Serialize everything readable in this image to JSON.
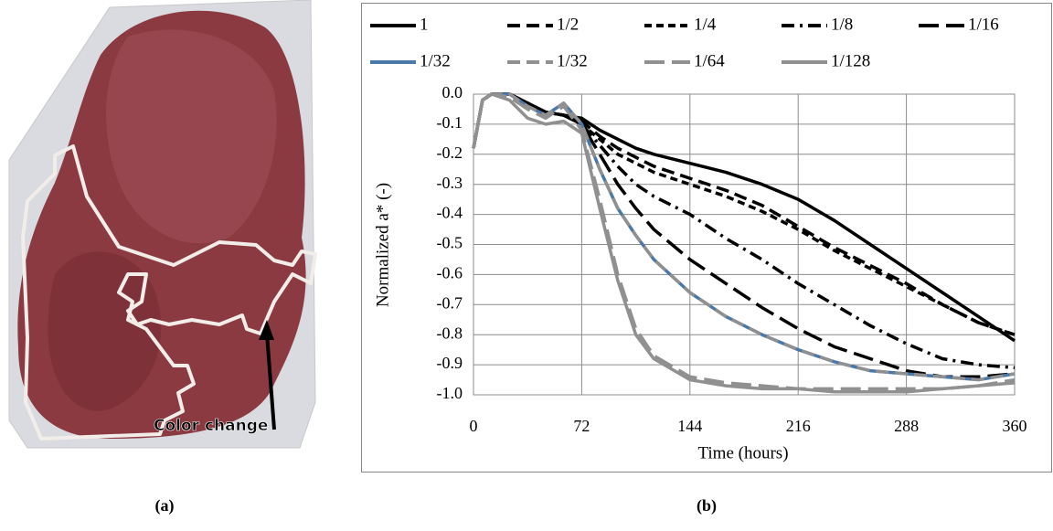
{
  "panel_a": {
    "annotation": "Color change",
    "caption": "(a)"
  },
  "panel_b": {
    "caption": "(b)"
  },
  "chart_data": {
    "type": "line",
    "xlabel": "Time (hours)",
    "ylabel": "Normalized a* (-)",
    "x": [
      0,
      6,
      12,
      24,
      36,
      48,
      60,
      72,
      84,
      96,
      108,
      120,
      144,
      168,
      192,
      216,
      240,
      264,
      288,
      312,
      336,
      360
    ],
    "xlim": [
      0,
      360
    ],
    "xticks": [
      0,
      72,
      144,
      216,
      288,
      360
    ],
    "ylim": [
      -1,
      0
    ],
    "yticks": [
      {
        "value": 0,
        "label": "0.0"
      },
      -0.1,
      -0.2,
      -0.3,
      -0.4,
      -0.5,
      -0.6,
      -0.7,
      -0.8,
      -0.9,
      {
        "value": -1,
        "label": "-1.0"
      }
    ],
    "grid": true,
    "legend": "top",
    "series": [
      {
        "name": "1",
        "color": "#000000",
        "dash": "solid",
        "values": [
          -0.18,
          -0.02,
          0,
          0,
          -0.03,
          -0.06,
          -0.07,
          -0.08,
          -0.12,
          -0.15,
          -0.18,
          -0.2,
          -0.23,
          -0.26,
          -0.3,
          -0.35,
          -0.42,
          -0.5,
          -0.58,
          -0.66,
          -0.74,
          -0.82
        ]
      },
      {
        "name": "1/2",
        "color": "#000000",
        "dash": "dash",
        "values": [
          -0.18,
          -0.02,
          0,
          0,
          -0.03,
          -0.06,
          -0.07,
          -0.09,
          -0.14,
          -0.18,
          -0.21,
          -0.24,
          -0.28,
          -0.32,
          -0.37,
          -0.44,
          -0.51,
          -0.57,
          -0.63,
          -0.7,
          -0.76,
          -0.8
        ]
      },
      {
        "name": "1/4",
        "color": "#000000",
        "dash": "short-dash",
        "values": [
          -0.18,
          -0.02,
          0,
          0,
          -0.03,
          -0.06,
          -0.07,
          -0.1,
          -0.15,
          -0.2,
          -0.23,
          -0.26,
          -0.3,
          -0.34,
          -0.39,
          -0.45,
          -0.52,
          -0.58,
          -0.64,
          -0.7,
          -0.76,
          -0.8
        ]
      },
      {
        "name": "1/8",
        "color": "#000000",
        "dash": "dash-dot",
        "values": [
          -0.18,
          -0.02,
          0,
          0,
          -0.03,
          -0.06,
          -0.07,
          -0.1,
          -0.17,
          -0.24,
          -0.3,
          -0.34,
          -0.4,
          -0.48,
          -0.55,
          -0.63,
          -0.7,
          -0.77,
          -0.83,
          -0.88,
          -0.9,
          -0.91
        ]
      },
      {
        "name": "1/16",
        "color": "#000000",
        "dash": "long-dash",
        "values": [
          -0.18,
          -0.02,
          0,
          0,
          -0.03,
          -0.06,
          -0.07,
          -0.1,
          -0.2,
          -0.3,
          -0.38,
          -0.45,
          -0.55,
          -0.63,
          -0.71,
          -0.78,
          -0.84,
          -0.88,
          -0.92,
          -0.94,
          -0.94,
          -0.93
        ]
      },
      {
        "name": "1/32",
        "color": "#4a78a8",
        "dash": "solid",
        "values": [
          -0.18,
          -0.02,
          0,
          0,
          -0.04,
          -0.07,
          -0.03,
          -0.1,
          -0.25,
          -0.38,
          -0.47,
          -0.55,
          -0.66,
          -0.74,
          -0.8,
          -0.85,
          -0.89,
          -0.92,
          -0.93,
          -0.94,
          -0.95,
          -0.93
        ]
      },
      {
        "name": "1/32",
        "color": "#909090",
        "dash": "dash",
        "values": [
          -0.18,
          -0.02,
          0,
          0,
          -0.04,
          -0.07,
          -0.03,
          -0.1,
          -0.25,
          -0.38,
          -0.47,
          -0.55,
          -0.66,
          -0.74,
          -0.8,
          -0.85,
          -0.89,
          -0.92,
          -0.93,
          -0.94,
          -0.95,
          -0.93
        ]
      },
      {
        "name": "1/64",
        "color": "#909090",
        "dash": "long-dash",
        "values": [
          -0.18,
          -0.02,
          0,
          -0.01,
          -0.05,
          -0.08,
          -0.04,
          -0.12,
          -0.35,
          -0.6,
          -0.78,
          -0.87,
          -0.94,
          -0.96,
          -0.97,
          -0.98,
          -0.98,
          -0.98,
          -0.98,
          -0.98,
          -0.97,
          -0.95
        ]
      },
      {
        "name": "1/128",
        "color": "#909090",
        "dash": "solid",
        "values": [
          -0.18,
          -0.02,
          0,
          -0.02,
          -0.08,
          -0.1,
          -0.09,
          -0.13,
          -0.38,
          -0.62,
          -0.8,
          -0.88,
          -0.95,
          -0.97,
          -0.98,
          -0.98,
          -0.99,
          -0.99,
          -0.99,
          -0.98,
          -0.97,
          -0.96
        ]
      }
    ]
  }
}
